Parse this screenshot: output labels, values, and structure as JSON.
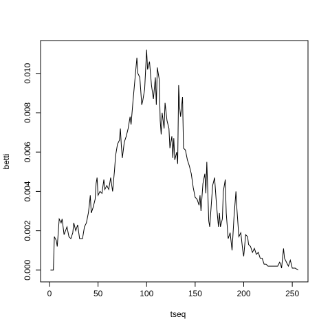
{
  "chart_data": {
    "type": "line",
    "x_label": "tseq",
    "y_label": "betti",
    "xlim": [
      -9.2,
      266.2
    ],
    "ylim": [
      -0.0006,
      0.01167
    ],
    "xticks": [
      0,
      50,
      100,
      150,
      200,
      250
    ],
    "yticks": [
      {
        "value": 0,
        "label": "0.000"
      },
      {
        "value": 0.002,
        "label": "0.002"
      },
      {
        "value": 0.004,
        "label": "0.004"
      },
      {
        "value": 0.006,
        "label": "0.006"
      },
      {
        "value": 0.008,
        "label": "0.008"
      },
      {
        "value": 0.01,
        "label": "0.010"
      }
    ],
    "color": "#000000",
    "x": [
      1,
      4,
      5,
      7,
      8,
      10,
      12,
      13,
      15,
      18,
      20,
      22,
      24,
      25,
      27,
      29,
      31,
      34,
      36,
      38,
      40,
      41,
      42,
      43,
      45,
      47,
      48,
      49,
      50,
      52,
      54,
      56,
      57,
      59,
      61,
      63,
      65,
      67,
      68,
      70,
      72,
      73,
      74,
      75,
      77,
      79,
      81,
      83,
      84,
      86,
      88,
      90,
      91,
      93,
      95,
      96,
      98,
      100,
      101,
      103,
      105,
      107,
      109,
      110,
      111,
      113,
      114,
      115,
      116,
      118,
      119,
      121,
      123,
      124,
      126,
      127,
      128,
      129,
      131,
      132,
      133,
      134,
      135,
      137,
      138,
      140,
      142,
      144,
      146,
      148,
      150,
      152,
      154,
      155,
      156,
      158,
      160,
      161,
      162,
      164,
      165,
      166,
      168,
      170,
      172,
      174,
      175,
      176,
      178,
      179,
      181,
      182,
      184,
      186,
      188,
      190,
      192,
      193,
      195,
      197,
      199,
      200,
      202,
      204,
      205,
      207,
      209,
      211,
      213,
      215,
      217,
      219,
      221,
      223,
      225,
      230,
      235,
      237,
      238,
      239,
      241,
      242,
      244,
      246,
      248,
      250,
      253,
      256
    ],
    "values": [
      0,
      0,
      0.0017,
      0.0015,
      0.0012,
      0.0026,
      0.0024,
      0.0026,
      0.0018,
      0.0022,
      0.0017,
      0.0016,
      0.0019,
      0.0024,
      0.002,
      0.0023,
      0.0016,
      0.0016,
      0.0022,
      0.0024,
      0.0029,
      0.0033,
      0.0038,
      0.0029,
      0.0032,
      0.0036,
      0.0044,
      0.0047,
      0.0038,
      0.004,
      0.0039,
      0.0046,
      0.0041,
      0.0043,
      0.0041,
      0.0047,
      0.004,
      0.0051,
      0.0058,
      0.0064,
      0.0066,
      0.0072,
      0.0063,
      0.0057,
      0.0065,
      0.0068,
      0.0072,
      0.0078,
      0.0074,
      0.0086,
      0.0097,
      0.0108,
      0.01,
      0.0098,
      0.0084,
      0.0086,
      0.0092,
      0.0112,
      0.0102,
      0.0106,
      0.0094,
      0.0087,
      0.0098,
      0.0084,
      0.0103,
      0.0097,
      0.0076,
      0.0069,
      0.008,
      0.0072,
      0.0085,
      0.0076,
      0.0072,
      0.0062,
      0.0068,
      0.0057,
      0.0067,
      0.0056,
      0.006,
      0.0054,
      0.0094,
      0.0083,
      0.0078,
      0.0088,
      0.0062,
      0.0061,
      0.0056,
      0.0053,
      0.0049,
      0.0042,
      0.0037,
      0.0036,
      0.0033,
      0.0038,
      0.003,
      0.0044,
      0.0049,
      0.0039,
      0.0055,
      0.0025,
      0.0022,
      0.0029,
      0.0043,
      0.0047,
      0.0033,
      0.0022,
      0.0029,
      0.0022,
      0.0026,
      0.004,
      0.0046,
      0.0029,
      0.0016,
      0.0019,
      0.001,
      0.0027,
      0.004,
      0.0031,
      0.0017,
      0.0019,
      0.001,
      0.0007,
      0.0018,
      0.0017,
      0.0013,
      0.0012,
      0.0009,
      0.0011,
      0.0008,
      0.0009,
      0.0006,
      0.0006,
      0.0003,
      0.0003,
      0.0002,
      0.0002,
      0.0002,
      0.0004,
      0.0003,
      0.0001,
      0.0011,
      0.0006,
      0.0004,
      0.0002,
      0.0005,
      0.0001,
      0.0001,
      0
    ]
  }
}
